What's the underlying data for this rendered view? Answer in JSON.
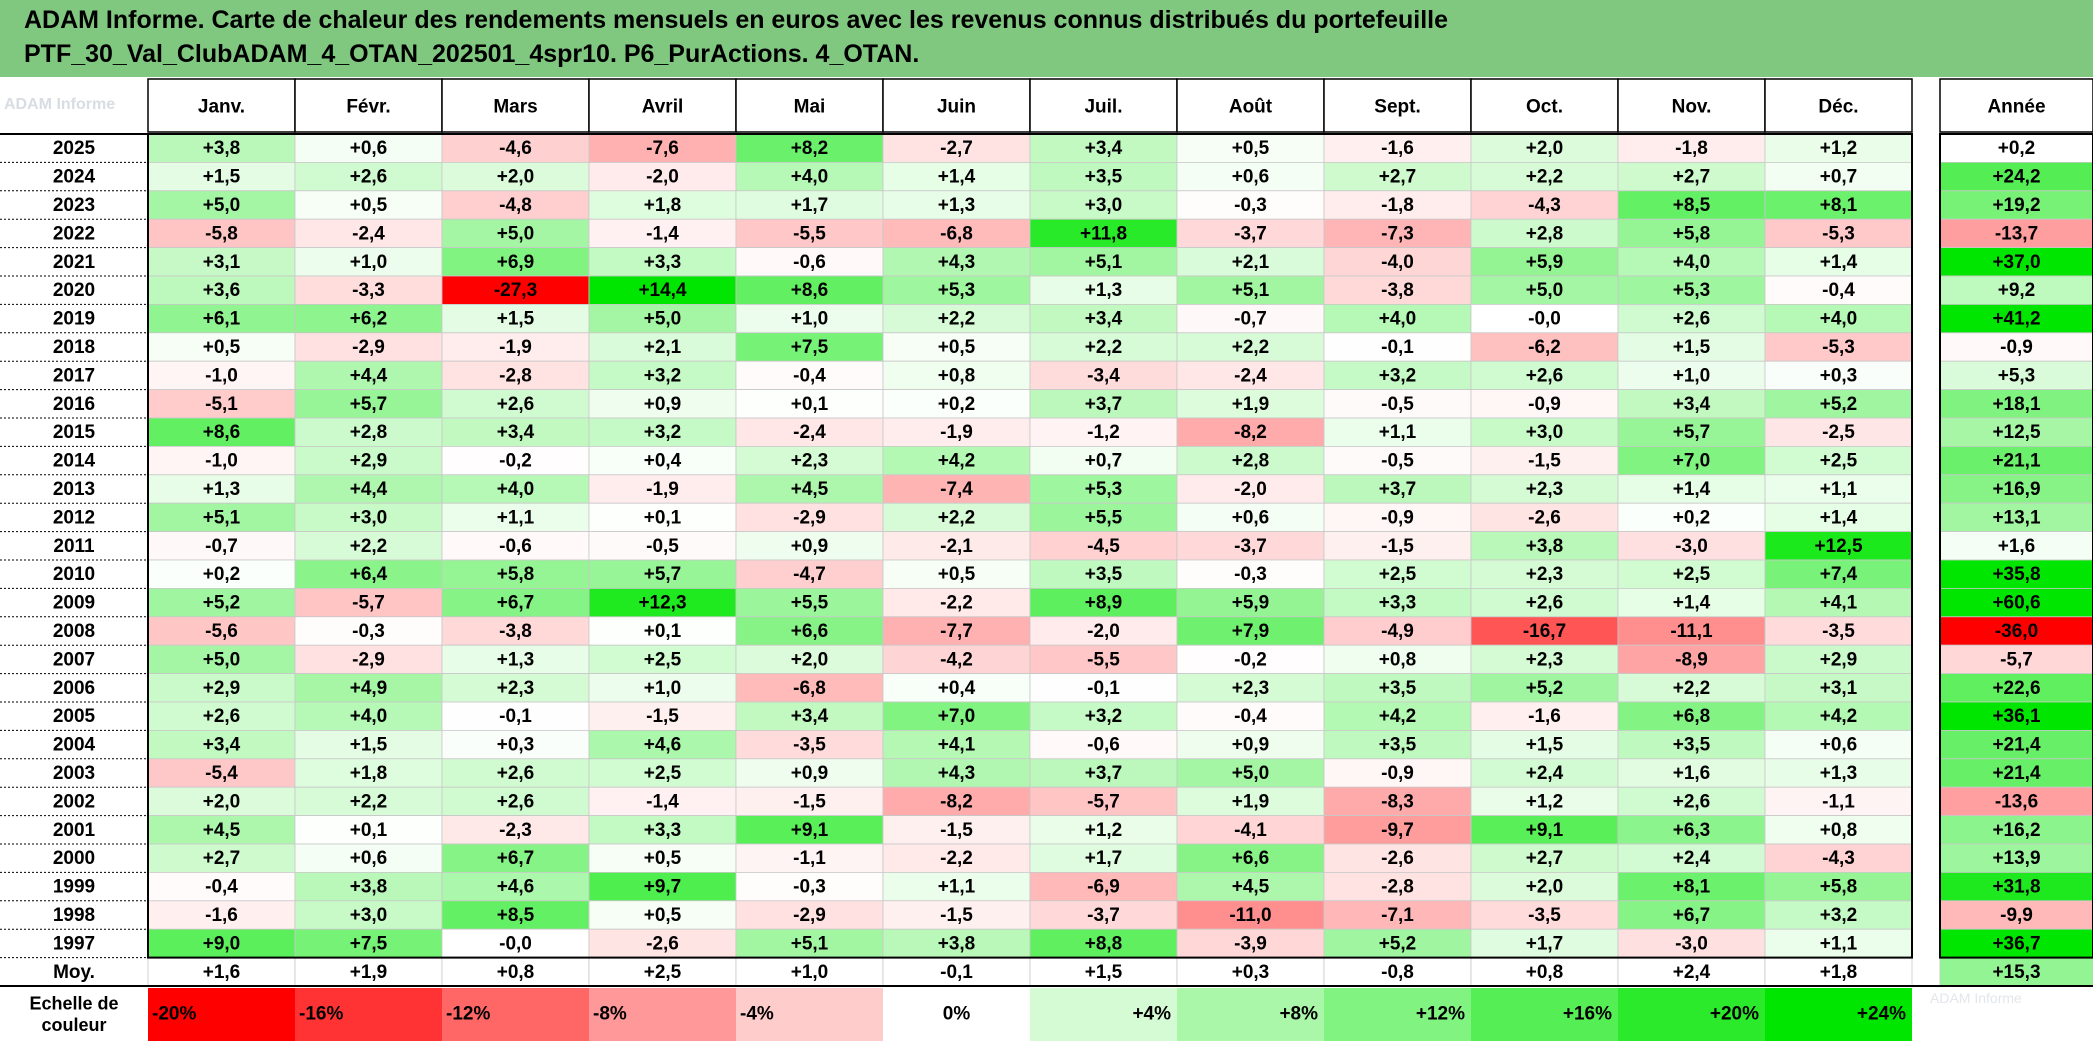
{
  "title_line1": "ADAM Informe. Carte de chaleur des rendements mensuels en euros avec les revenus connus distribués du portefeuille",
  "title_line2": "PTF_30_Val_ClubADAM_4_OTAN_202501_4spr10. P6_PurActions. 4_OTAN.",
  "corner_watermark": "ADAM Informe",
  "footer_watermark": "ADAM Informe",
  "chart_data": {
    "type": "heatmap",
    "months": [
      "Janv.",
      "Févr.",
      "Mars",
      "Avril",
      "Mai",
      "Juin",
      "Juil.",
      "Août",
      "Sept.",
      "Oct.",
      "Nov.",
      "Déc."
    ],
    "year_header": "Année",
    "average_label": "Moy.",
    "rows": [
      {
        "year": "2025",
        "values": [
          "+3,8",
          "+0,6",
          "-4,6",
          "-7,6",
          "+8,2",
          "-2,7",
          "+3,4",
          "+0,5",
          "-1,6",
          "+2,0",
          "-1,8",
          "+1,2"
        ],
        "annual": "+0,2"
      },
      {
        "year": "2024",
        "values": [
          "+1,5",
          "+2,6",
          "+2,0",
          "-2,0",
          "+4,0",
          "+1,4",
          "+3,5",
          "+0,6",
          "+2,7",
          "+2,2",
          "+2,7",
          "+0,7"
        ],
        "annual": "+24,2"
      },
      {
        "year": "2023",
        "values": [
          "+5,0",
          "+0,5",
          "-4,8",
          "+1,8",
          "+1,7",
          "+1,3",
          "+3,0",
          "-0,3",
          "-1,8",
          "-4,3",
          "+8,5",
          "+8,1"
        ],
        "annual": "+19,2"
      },
      {
        "year": "2022",
        "values": [
          "-5,8",
          "-2,4",
          "+5,0",
          "-1,4",
          "-5,5",
          "-6,8",
          "+11,8",
          "-3,7",
          "-7,3",
          "+2,8",
          "+5,8",
          "-5,3"
        ],
        "annual": "-13,7"
      },
      {
        "year": "2021",
        "values": [
          "+3,1",
          "+1,0",
          "+6,9",
          "+3,3",
          "-0,6",
          "+4,3",
          "+5,1",
          "+2,1",
          "-4,0",
          "+5,9",
          "+4,0",
          "+1,4"
        ],
        "annual": "+37,0"
      },
      {
        "year": "2020",
        "values": [
          "+3,6",
          "-3,3",
          "-27,3",
          "+14,4",
          "+8,6",
          "+5,3",
          "+1,3",
          "+5,1",
          "-3,8",
          "+5,0",
          "+5,3",
          "-0,4"
        ],
        "annual": "+9,2"
      },
      {
        "year": "2019",
        "values": [
          "+6,1",
          "+6,2",
          "+1,5",
          "+5,0",
          "+1,0",
          "+2,2",
          "+3,4",
          "-0,7",
          "+4,0",
          "-0,0",
          "+2,6",
          "+4,0"
        ],
        "annual": "+41,2"
      },
      {
        "year": "2018",
        "values": [
          "+0,5",
          "-2,9",
          "-1,9",
          "+2,1",
          "+7,5",
          "+0,5",
          "+2,2",
          "+2,2",
          "-0,1",
          "-6,2",
          "+1,5",
          "-5,3"
        ],
        "annual": "-0,9"
      },
      {
        "year": "2017",
        "values": [
          "-1,0",
          "+4,4",
          "-2,8",
          "+3,2",
          "-0,4",
          "+0,8",
          "-3,4",
          "-2,4",
          "+3,2",
          "+2,6",
          "+1,0",
          "+0,3"
        ],
        "annual": "+5,3"
      },
      {
        "year": "2016",
        "values": [
          "-5,1",
          "+5,7",
          "+2,6",
          "+0,9",
          "+0,1",
          "+0,2",
          "+3,7",
          "+1,9",
          "-0,5",
          "-0,9",
          "+3,4",
          "+5,2"
        ],
        "annual": "+18,1"
      },
      {
        "year": "2015",
        "values": [
          "+8,6",
          "+2,8",
          "+3,4",
          "+3,2",
          "-2,4",
          "-1,9",
          "-1,2",
          "-8,2",
          "+1,1",
          "+3,0",
          "+5,7",
          "-2,5"
        ],
        "annual": "+12,5"
      },
      {
        "year": "2014",
        "values": [
          "-1,0",
          "+2,9",
          "-0,2",
          "+0,4",
          "+2,3",
          "+4,2",
          "+0,7",
          "+2,8",
          "-0,5",
          "-1,5",
          "+7,0",
          "+2,5"
        ],
        "annual": "+21,1"
      },
      {
        "year": "2013",
        "values": [
          "+1,3",
          "+4,4",
          "+4,0",
          "-1,9",
          "+4,5",
          "-7,4",
          "+5,3",
          "-2,0",
          "+3,7",
          "+2,3",
          "+1,4",
          "+1,1"
        ],
        "annual": "+16,9"
      },
      {
        "year": "2012",
        "values": [
          "+5,1",
          "+3,0",
          "+1,1",
          "+0,1",
          "-2,9",
          "+2,2",
          "+5,5",
          "+0,6",
          "-0,9",
          "-2,6",
          "+0,2",
          "+1,4"
        ],
        "annual": "+13,1"
      },
      {
        "year": "2011",
        "values": [
          "-0,7",
          "+2,2",
          "-0,6",
          "-0,5",
          "+0,9",
          "-2,1",
          "-4,5",
          "-3,7",
          "-1,5",
          "+3,8",
          "-3,0",
          "+12,5"
        ],
        "annual": "+1,6"
      },
      {
        "year": "2010",
        "values": [
          "+0,2",
          "+6,4",
          "+5,8",
          "+5,7",
          "-4,7",
          "+0,5",
          "+3,5",
          "-0,3",
          "+2,5",
          "+2,3",
          "+2,5",
          "+7,4"
        ],
        "annual": "+35,8"
      },
      {
        "year": "2009",
        "values": [
          "+5,2",
          "-5,7",
          "+6,7",
          "+12,3",
          "+5,5",
          "-2,2",
          "+8,9",
          "+5,9",
          "+3,3",
          "+2,6",
          "+1,4",
          "+4,1"
        ],
        "annual": "+60,6"
      },
      {
        "year": "2008",
        "values": [
          "-5,6",
          "-0,3",
          "-3,8",
          "+0,1",
          "+6,6",
          "-7,7",
          "-2,0",
          "+7,9",
          "-4,9",
          "-16,7",
          "-11,1",
          "-3,5"
        ],
        "annual": "-36,0"
      },
      {
        "year": "2007",
        "values": [
          "+5,0",
          "-2,9",
          "+1,3",
          "+2,5",
          "+2,0",
          "-4,2",
          "-5,5",
          "-0,2",
          "+0,8",
          "+2,3",
          "-8,9",
          "+2,9"
        ],
        "annual": "-5,7"
      },
      {
        "year": "2006",
        "values": [
          "+2,9",
          "+4,9",
          "+2,3",
          "+1,0",
          "-6,8",
          "+0,4",
          "-0,1",
          "+2,3",
          "+3,5",
          "+5,2",
          "+2,2",
          "+3,1"
        ],
        "annual": "+22,6"
      },
      {
        "year": "2005",
        "values": [
          "+2,6",
          "+4,0",
          "-0,1",
          "-1,5",
          "+3,4",
          "+7,0",
          "+3,2",
          "-0,4",
          "+4,2",
          "-1,6",
          "+6,8",
          "+4,2"
        ],
        "annual": "+36,1"
      },
      {
        "year": "2004",
        "values": [
          "+3,4",
          "+1,5",
          "+0,3",
          "+4,6",
          "-3,5",
          "+4,1",
          "-0,6",
          "+0,9",
          "+3,5",
          "+1,5",
          "+3,5",
          "+0,6"
        ],
        "annual": "+21,4"
      },
      {
        "year": "2003",
        "values": [
          "-5,4",
          "+1,8",
          "+2,6",
          "+2,5",
          "+0,9",
          "+4,3",
          "+3,7",
          "+5,0",
          "-0,9",
          "+2,4",
          "+1,6",
          "+1,3"
        ],
        "annual": "+21,4"
      },
      {
        "year": "2002",
        "values": [
          "+2,0",
          "+2,2",
          "+2,6",
          "-1,4",
          "-1,5",
          "-8,2",
          "-5,7",
          "+1,9",
          "-8,3",
          "+1,2",
          "+2,6",
          "-1,1"
        ],
        "annual": "-13,6"
      },
      {
        "year": "2001",
        "values": [
          "+4,5",
          "+0,1",
          "-2,3",
          "+3,3",
          "+9,1",
          "-1,5",
          "+1,2",
          "-4,1",
          "-9,7",
          "+9,1",
          "+6,3",
          "+0,8"
        ],
        "annual": "+16,2"
      },
      {
        "year": "2000",
        "values": [
          "+2,7",
          "+0,6",
          "+6,7",
          "+0,5",
          "-1,1",
          "-2,2",
          "+1,7",
          "+6,6",
          "-2,6",
          "+2,7",
          "+2,4",
          "-4,3"
        ],
        "annual": "+13,9"
      },
      {
        "year": "1999",
        "values": [
          "-0,4",
          "+3,8",
          "+4,6",
          "+9,7",
          "-0,3",
          "+1,1",
          "-6,9",
          "+4,5",
          "-2,8",
          "+2,0",
          "+8,1",
          "+5,8"
        ],
        "annual": "+31,8"
      },
      {
        "year": "1998",
        "values": [
          "-1,6",
          "+3,0",
          "+8,5",
          "+0,5",
          "-2,9",
          "-1,5",
          "-3,7",
          "-11,0",
          "-7,1",
          "-3,5",
          "+6,7",
          "+3,2"
        ],
        "annual": "-9,9"
      },
      {
        "year": "1997",
        "values": [
          "+9,0",
          "+7,5",
          "-0,0",
          "-2,6",
          "+5,1",
          "+3,8",
          "+8,8",
          "-3,9",
          "+5,2",
          "+1,7",
          "-3,0",
          "+1,1"
        ],
        "annual": "+36,7"
      }
    ],
    "average": {
      "values": [
        "+1,6",
        "+1,9",
        "+0,8",
        "+2,5",
        "+1,0",
        "-0,1",
        "+1,5",
        "+0,3",
        "-0,8",
        "+0,8",
        "+2,4",
        "+1,8"
      ],
      "annual": "+15,3"
    },
    "legend_label": "Echelle de couleur",
    "legend_scale": [
      "-20%",
      "-16%",
      "-12%",
      "-8%",
      "-4%",
      "0%",
      "+4%",
      "+8%",
      "+12%",
      "+16%",
      "+20%",
      "+24%"
    ],
    "colors": {
      "negative": "#ff0000",
      "positive": "#00ee00",
      "neutral": "#ffffff",
      "title_background": "#80c880"
    }
  }
}
